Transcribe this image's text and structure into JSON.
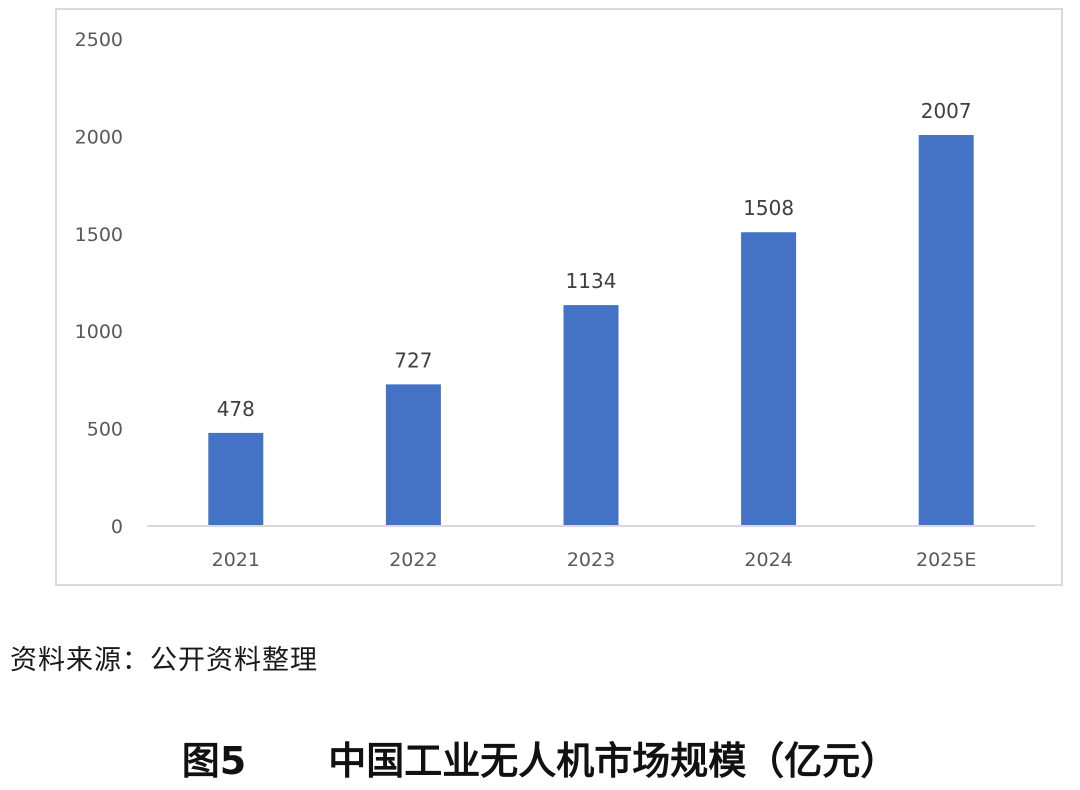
{
  "chart_data": {
    "type": "bar",
    "categories": [
      "2021",
      "2022",
      "2023",
      "2024",
      "2025E"
    ],
    "values": [
      478,
      727,
      1134,
      1508,
      2007
    ],
    "data_labels": [
      "478",
      "727",
      "1134",
      "1508",
      "2007"
    ],
    "y_ticks": [
      0,
      500,
      1000,
      1500,
      2000,
      2500
    ],
    "ylim": [
      0,
      2500
    ],
    "grid": false,
    "bar_color": "#4472C4",
    "xlabel": "",
    "ylabel": ""
  },
  "source_note": "资料来源：公开资料整理",
  "figure": {
    "number": "图5",
    "title": "中国工业无人机市场规模（亿元）"
  }
}
